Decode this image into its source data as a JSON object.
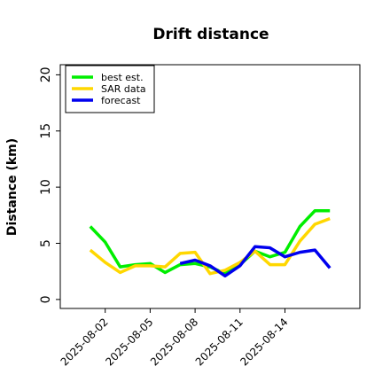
{
  "chart_data": {
    "type": "line",
    "title": "Drift distance",
    "ylabel": "Distance (km)",
    "x": [
      "2025-08-01",
      "2025-08-02",
      "2025-08-03",
      "2025-08-04",
      "2025-08-05",
      "2025-08-06",
      "2025-08-07",
      "2025-08-08",
      "2025-08-09",
      "2025-08-10",
      "2025-08-11",
      "2025-08-12",
      "2025-08-13",
      "2025-08-14",
      "2025-08-15",
      "2025-08-16",
      "2025-08-17"
    ],
    "series": [
      {
        "name": "best est.",
        "color": "#00ee00",
        "values": [
          6.5,
          5.1,
          2.9,
          3.1,
          3.2,
          2.4,
          3.1,
          3.2,
          2.9,
          2.3,
          3.1,
          4.3,
          3.8,
          4.2,
          6.5,
          7.9,
          7.9
        ]
      },
      {
        "name": "SAR data",
        "color": "#ffd700",
        "values": [
          4.4,
          3.3,
          2.4,
          3.0,
          3.0,
          2.9,
          4.1,
          4.2,
          2.3,
          2.6,
          3.3,
          4.3,
          3.1,
          3.1,
          5.2,
          6.7,
          7.2
        ]
      },
      {
        "name": "forecast",
        "color": "#0000ee",
        "values": [
          null,
          null,
          null,
          null,
          null,
          null,
          3.2,
          3.5,
          3.0,
          2.1,
          3.0,
          4.7,
          4.6,
          3.8,
          4.2,
          4.4,
          2.8
        ]
      }
    ],
    "xlim": [
      "2025-07-30",
      "2025-08-19"
    ],
    "xticks": [
      "2025-08-02",
      "2025-08-05",
      "2025-08-08",
      "2025-08-11",
      "2025-08-14"
    ],
    "ylim": [
      -0.8,
      20.9
    ],
    "yticks": [
      0,
      5,
      10,
      15,
      20
    ],
    "legend": "upper left"
  }
}
